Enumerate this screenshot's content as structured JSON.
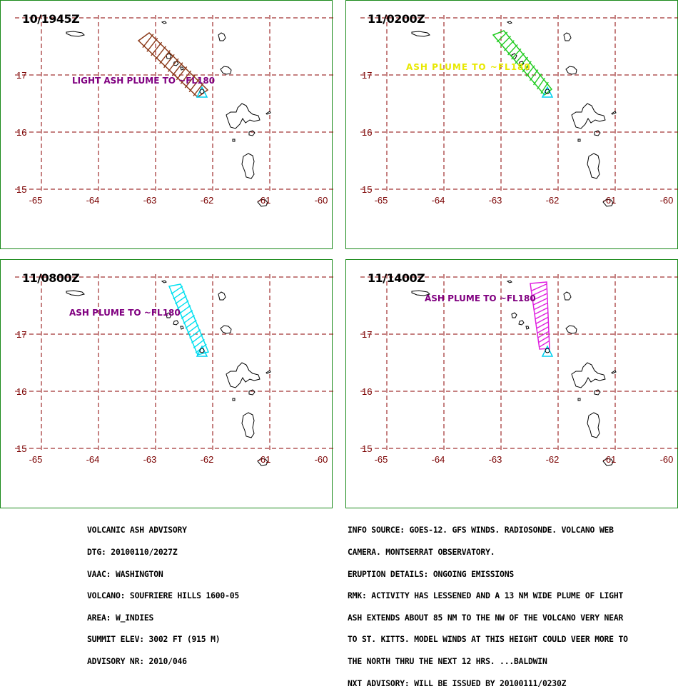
{
  "axes": {
    "lat_ticks": [
      "17",
      "16",
      "15"
    ],
    "lon_ticks": [
      "-65",
      "-64",
      "-63",
      "-62",
      "-61",
      "-60"
    ]
  },
  "panels": [
    {
      "time": "10/1945Z",
      "label": "LIGHT ASH PLUME TO ~FL180",
      "plume_color": "#8b3a1a",
      "label_color": "#800080"
    },
    {
      "time": "11/0200Z",
      "label": "ASH PLUME TO ~FL180",
      "plume_color": "#22cc22",
      "label_color": "#e8e800"
    },
    {
      "time": "11/0800Z",
      "label": "ASH PLUME TO ~FL180",
      "plume_color": "#00e0f0",
      "label_color": "#800080"
    },
    {
      "time": "11/1400Z",
      "label": "ASH PLUME TO ~FL180",
      "plume_color": "#e020e0",
      "label_color": "#800080"
    }
  ],
  "volcano_marker_color": "#00d0f0",
  "grid_color": "#8b0000",
  "advisory_left": [
    "VOLCANIC ASH ADVISORY",
    "DTG: 20100110/2027Z",
    "VAAC: WASHINGTON",
    "VOLCANO: SOUFRIERE HILLS 1600-05",
    "AREA: W_INDIES",
    "SUMMIT ELEV: 3002 FT (915 M)",
    "ADVISORY NR: 2010/046"
  ],
  "advisory_right": [
    "INFO SOURCE: GOES-12. GFS WINDS. RADIOSONDE. VOLCANO WEB",
    "CAMERA. MONTSERRAT OBSERVATORY.",
    "ERUPTION DETAILS: ONGOING EMISSIONS",
    "RMK: ACTIVITY HAS LESSENED AND A 13 NM WIDE PLUME OF LIGHT",
    "ASH EXTENDS ABOUT 85 NM TO THE NW OF THE VOLCANO VERY NEAR",
    "TO ST. KITTS. MODEL WINDS AT THIS HEIGHT COULD VEER MORE TO",
    "THE NORTH THRU THE NEXT 12 HRS. ...BALDWIN",
    "NXT ADVISORY: WILL BE ISSUED BY 20100111/0230Z"
  ]
}
